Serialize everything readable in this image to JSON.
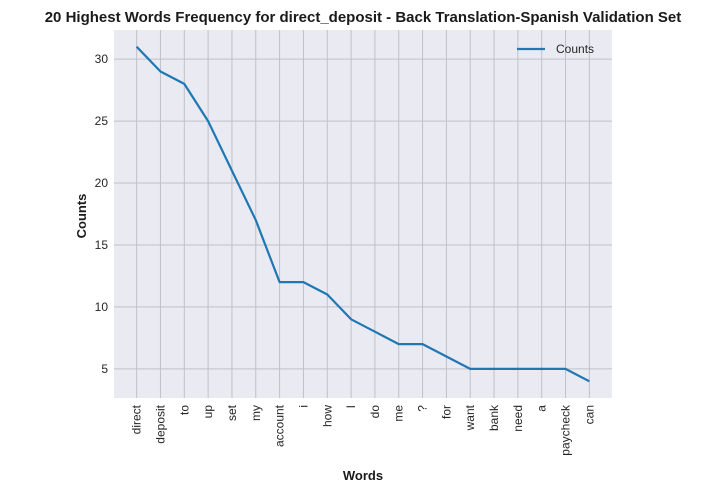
{
  "chart_data": {
    "type": "line",
    "title": "20 Highest Words Frequency for direct_deposit - Back Translation-Spanish Validation Set",
    "xlabel": "Words",
    "ylabel": "Counts",
    "categories": [
      "direct",
      "deposit",
      "to",
      "up",
      "set",
      "my",
      "account",
      "i",
      "how",
      "I",
      "do",
      "me",
      "?",
      "for",
      "want",
      "bank",
      "need",
      "a",
      "paycheck",
      "can"
    ],
    "series": [
      {
        "name": "Counts",
        "values": [
          31,
          29,
          28,
          25,
          21,
          17,
          12,
          12,
          11,
          9,
          8,
          7,
          7,
          6,
          5,
          5,
          5,
          5,
          5,
          4
        ]
      }
    ],
    "ylim": [
      2.65,
      32.35
    ],
    "yticks": [
      5,
      10,
      15,
      20,
      25,
      30
    ],
    "grid": true,
    "legend": "top-right",
    "colors": {
      "line": "#1f77b4",
      "background": "#eaeaf2",
      "grid": "#c0c0c8"
    }
  }
}
